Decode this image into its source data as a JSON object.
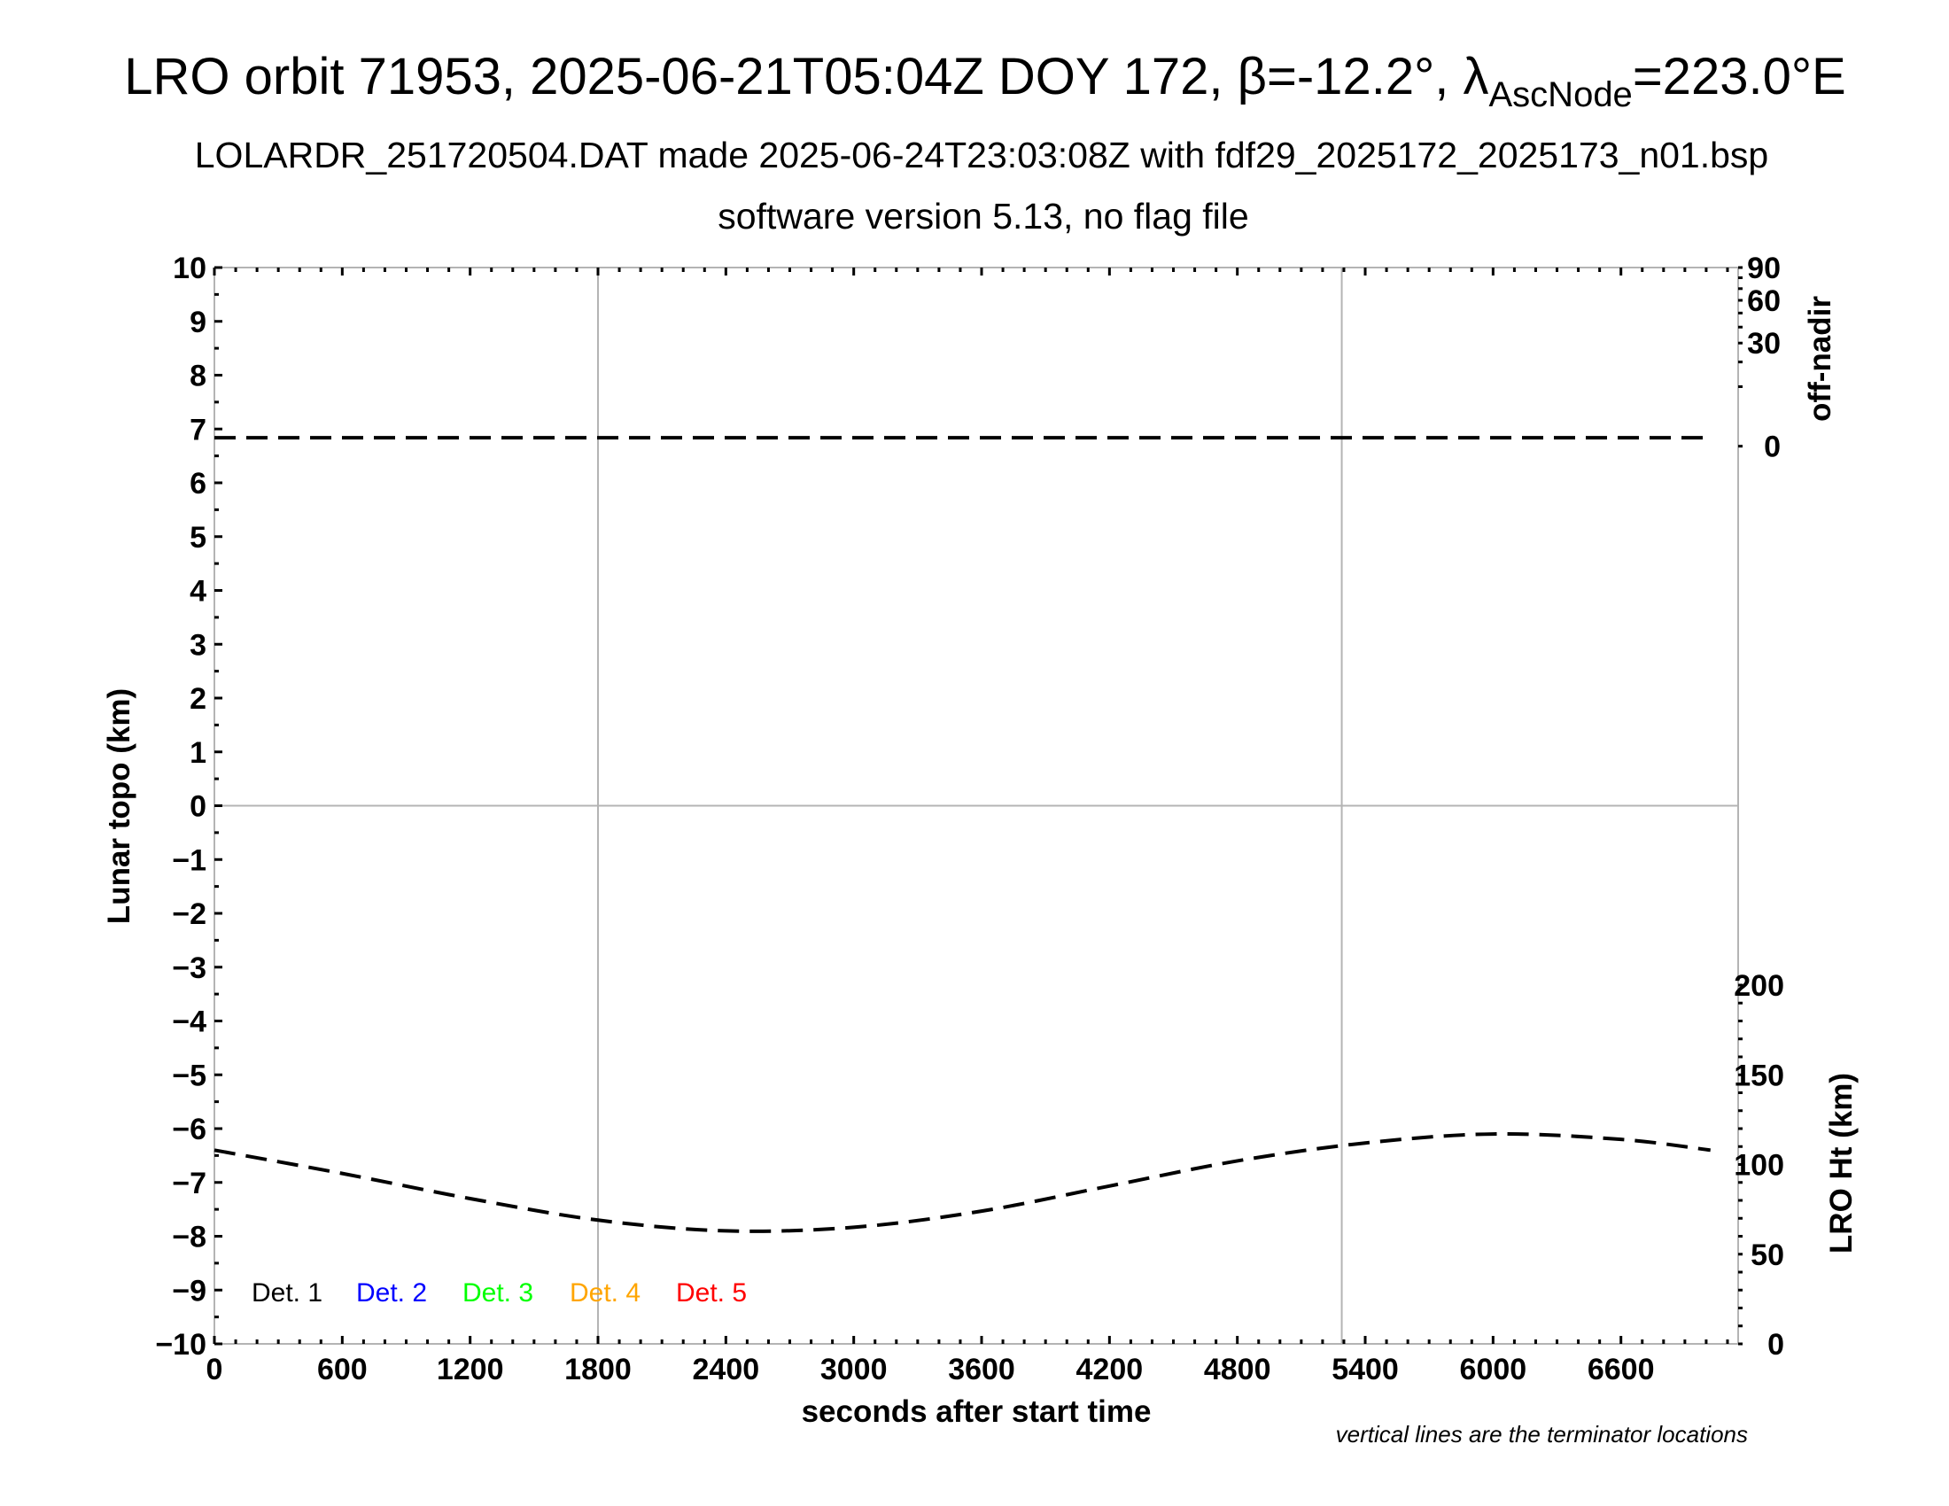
{
  "chart_data": {
    "type": "line",
    "title": {
      "main": "LRO orbit 71953, 2025-06-21T05:04Z DOY 172, β=-12.2°, λ",
      "subscript": "AscNode",
      "end": "=223.0°E"
    },
    "subtitle": "LOLARDR_251720504.DAT made 2025-06-24T23:03:08Z with fdf29_2025172_2025173_n01.bsp",
    "subtitle2": "software version 5.13, no flag file",
    "xlabel": "seconds after start time",
    "ylabel": "Lunar topo (km)",
    "y2_top_label": "off-nadir",
    "y2_bottom_label": "LRO Ht (km)",
    "note": "vertical lines are the terminator locations",
    "xlim": [
      0,
      7150
    ],
    "ylim": [
      -10,
      10
    ],
    "x_ticks": [
      "0",
      "600",
      "1200",
      "1800",
      "2400",
      "3000",
      "3600",
      "4200",
      "4800",
      "5400",
      "6000",
      "6600"
    ],
    "y_ticks": [
      "10",
      "9",
      "8",
      "7",
      "6",
      "5",
      "4",
      "3",
      "2",
      "1",
      "0",
      "−1",
      "−2",
      "−3",
      "−4",
      "−5",
      "−6",
      "−7",
      "−8",
      "−9",
      "−10"
    ],
    "off_nadir_axis": {
      "scale": "sqrt",
      "range": [
        0,
        90
      ],
      "ticks": [
        "0",
        "30",
        "60",
        "90"
      ]
    },
    "lro_ht_axis": {
      "range": [
        0,
        600
      ],
      "ticks": [
        "0",
        "50",
        "100",
        "150",
        "200"
      ]
    },
    "terminator_lines_x": [
      1800,
      5290
    ],
    "legend": [
      {
        "label": "Det. 1",
        "color": "#000000"
      },
      {
        "label": "Det. 2",
        "color": "#0000ff"
      },
      {
        "label": "Det. 3",
        "color": "#00ff00"
      },
      {
        "label": "Det. 4",
        "color": "#ffa500"
      },
      {
        "label": "Det. 5",
        "color": "#ff0000"
      }
    ],
    "series": [
      {
        "axis": "off-nadir",
        "style": "dashed",
        "color": "#000000",
        "x": [
          0,
          7020
        ],
        "values": [
          0.2,
          0.2
        ]
      },
      {
        "axis": "LRO Ht (km)",
        "style": "dashed",
        "color": "#000000",
        "x": [
          0,
          600,
          1200,
          1800,
          2400,
          3000,
          3600,
          4200,
          4800,
          5400,
          6000,
          6600,
          7020
        ],
        "values": [
          108,
          95,
          81,
          69,
          63,
          65,
          74,
          88,
          102,
          112,
          117,
          114,
          108
        ]
      }
    ],
    "grid": false,
    "gridline_y": 0,
    "gridline_color": "#b4b4b4"
  }
}
